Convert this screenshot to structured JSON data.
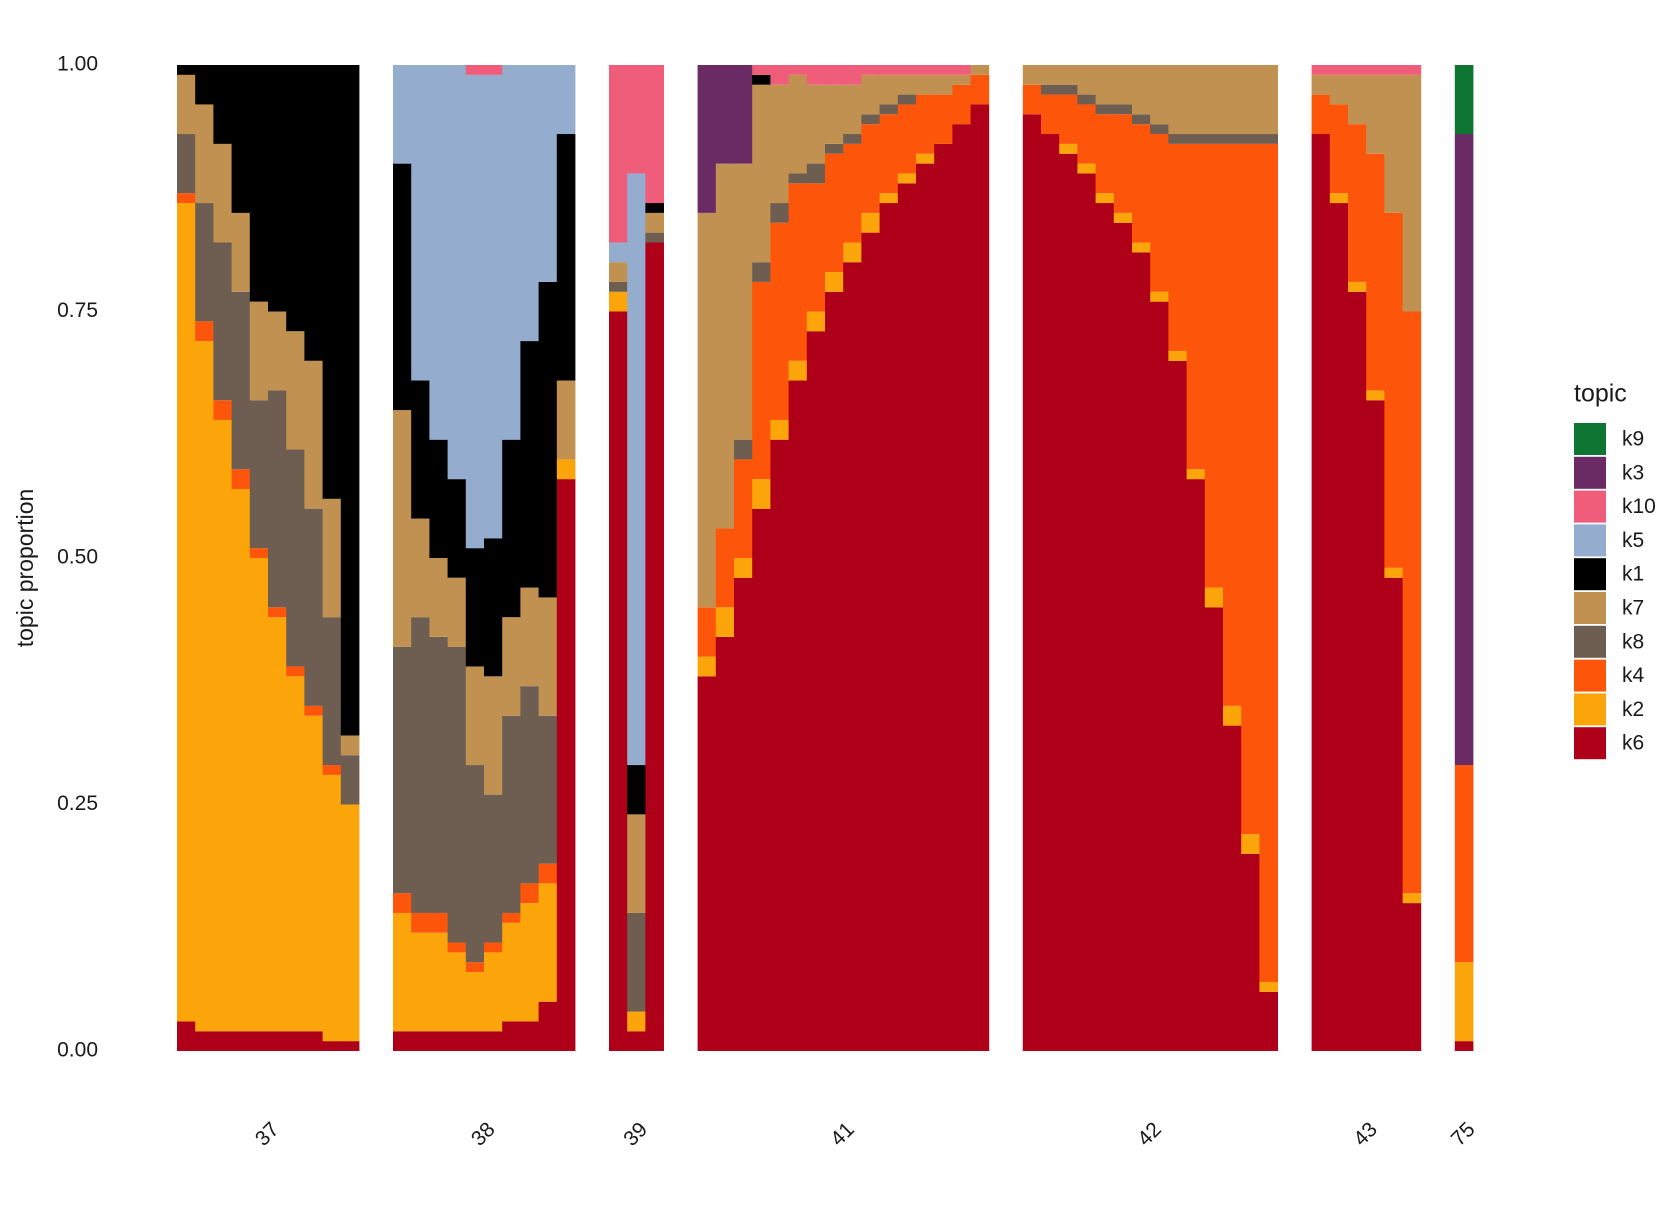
{
  "chart_data": {
    "type": "stacked-bar",
    "ylabel": "topic proportion",
    "legend_title": "topic",
    "legend_position": "right",
    "grid": false,
    "ylim": [
      0,
      1
    ],
    "yticks": [
      {
        "value": 0,
        "label": "0.00"
      },
      {
        "value": 0.25,
        "label": "0.25"
      },
      {
        "value": 0.5,
        "label": "0.50"
      },
      {
        "value": 0.75,
        "label": "0.75"
      },
      {
        "value": 1,
        "label": "1.00"
      }
    ],
    "categories": [
      "37",
      "37",
      "37",
      "37",
      "37",
      "37",
      "37",
      "37",
      "37",
      "37",
      "38",
      "38",
      "38",
      "38",
      "38",
      "38",
      "38",
      "38",
      "38",
      "38",
      "39",
      "39",
      "39",
      "41",
      "41",
      "41",
      "41",
      "41",
      "41",
      "41",
      "41",
      "41",
      "41",
      "41",
      "41",
      "41",
      "41",
      "41",
      "41",
      "42",
      "42",
      "42",
      "42",
      "42",
      "42",
      "42",
      "42",
      "42",
      "42",
      "42",
      "42",
      "42",
      "42",
      "43",
      "43",
      "43",
      "43",
      "43",
      "43",
      "75"
    ],
    "series": [
      {
        "name": "k9",
        "color": "#0f7533",
        "values": [
          0,
          0,
          0,
          0,
          0,
          0,
          0,
          0,
          0,
          0,
          0,
          0,
          0,
          0,
          0,
          0,
          0,
          0,
          0,
          0,
          0,
          0,
          0,
          0,
          0,
          0,
          0,
          0,
          0,
          0,
          0,
          0,
          0,
          0,
          0,
          0,
          0,
          0,
          0,
          0,
          0,
          0,
          0,
          0,
          0,
          0,
          0,
          0,
          0,
          0,
          0,
          0,
          0,
          0,
          0,
          0,
          0,
          0,
          0,
          0.07
        ]
      },
      {
        "name": "k3",
        "color": "#6a2a63",
        "values": [
          0,
          0,
          0,
          0,
          0,
          0,
          0,
          0,
          0,
          0,
          0,
          0,
          0,
          0,
          0,
          0,
          0,
          0,
          0,
          0,
          0,
          0,
          0,
          0.15,
          0.1,
          0.1,
          0,
          0,
          0,
          0,
          0,
          0,
          0,
          0,
          0,
          0,
          0,
          0,
          0,
          0,
          0,
          0,
          0,
          0,
          0,
          0,
          0,
          0,
          0,
          0,
          0,
          0,
          0,
          0,
          0,
          0,
          0,
          0,
          0,
          0.64
        ]
      },
      {
        "name": "k10",
        "color": "#ef5d7b",
        "values": [
          0,
          0,
          0,
          0,
          0,
          0,
          0,
          0,
          0,
          0,
          0,
          0,
          0,
          0,
          0.01,
          0.01,
          0,
          0,
          0,
          0,
          0.18,
          0.11,
          0.14,
          0,
          0,
          0,
          0.01,
          0.02,
          0.01,
          0.02,
          0.02,
          0.02,
          0.01,
          0.01,
          0.01,
          0.01,
          0.01,
          0.01,
          0,
          0,
          0,
          0,
          0,
          0,
          0,
          0,
          0,
          0,
          0,
          0,
          0,
          0,
          0,
          0.01,
          0.01,
          0.01,
          0.01,
          0.01,
          0.01,
          0
        ]
      },
      {
        "name": "k5",
        "color": "#94acce",
        "values": [
          0,
          0,
          0,
          0,
          0,
          0,
          0,
          0,
          0,
          0,
          0.1,
          0.32,
          0.38,
          0.42,
          0.48,
          0.47,
          0.38,
          0.28,
          0.22,
          0.07,
          0.02,
          0.6,
          0,
          0,
          0,
          0,
          0,
          0,
          0,
          0,
          0,
          0,
          0,
          0,
          0,
          0,
          0,
          0,
          0,
          0,
          0,
          0,
          0,
          0,
          0,
          0,
          0,
          0,
          0,
          0,
          0,
          0,
          0,
          0,
          0,
          0,
          0,
          0,
          0,
          0
        ]
      },
      {
        "name": "k1",
        "color": "#000000",
        "values": [
          0.01,
          0.04,
          0.08,
          0.15,
          0.24,
          0.25,
          0.27,
          0.3,
          0.44,
          0.68,
          0.25,
          0.14,
          0.12,
          0.1,
          0.12,
          0.14,
          0.18,
          0.25,
          0.32,
          0.25,
          0,
          0.05,
          0.01,
          0,
          0,
          0,
          0.01,
          0,
          0,
          0,
          0,
          0,
          0,
          0,
          0,
          0,
          0,
          0,
          0,
          0,
          0,
          0,
          0,
          0,
          0,
          0,
          0,
          0,
          0,
          0,
          0,
          0,
          0,
          0,
          0,
          0,
          0,
          0,
          0,
          0
        ]
      },
      {
        "name": "k7",
        "color": "#c09150",
        "values": [
          0.06,
          0.1,
          0.1,
          0.08,
          0.1,
          0.08,
          0.12,
          0.15,
          0.12,
          0.02,
          0.24,
          0.1,
          0.08,
          0.07,
          0.1,
          0.12,
          0.1,
          0.1,
          0.12,
          0.08,
          0.02,
          0.1,
          0.02,
          0.4,
          0.37,
          0.28,
          0.18,
          0.12,
          0.1,
          0.08,
          0.06,
          0.05,
          0.04,
          0.03,
          0.02,
          0.02,
          0.02,
          0.01,
          0.01,
          0.02,
          0.02,
          0.02,
          0.03,
          0.04,
          0.04,
          0.05,
          0.06,
          0.07,
          0.07,
          0.07,
          0.07,
          0.07,
          0.07,
          0.02,
          0.03,
          0.05,
          0.08,
          0.14,
          0.24,
          0
        ]
      },
      {
        "name": "k8",
        "color": "#6e5e52",
        "values": [
          0.06,
          0.12,
          0.16,
          0.18,
          0.15,
          0.22,
          0.22,
          0.2,
          0.15,
          0.05,
          0.25,
          0.3,
          0.28,
          0.3,
          0.2,
          0.15,
          0.2,
          0.2,
          0.15,
          0,
          0.01,
          0.1,
          0.01,
          0,
          0,
          0.02,
          0.02,
          0.02,
          0.01,
          0.02,
          0.01,
          0.01,
          0.01,
          0.01,
          0.01,
          0,
          0,
          0,
          0,
          0,
          0.01,
          0.01,
          0.01,
          0.01,
          0.01,
          0.01,
          0.01,
          0.01,
          0.01,
          0.01,
          0.01,
          0.01,
          0.01,
          0,
          0,
          0,
          0,
          0,
          0,
          0
        ]
      },
      {
        "name": "k4",
        "color": "#fd560a",
        "values": [
          0.01,
          0.02,
          0.02,
          0.02,
          0.01,
          0.01,
          0.01,
          0.01,
          0.01,
          0,
          0.02,
          0.02,
          0.02,
          0.01,
          0.01,
          0.01,
          0.01,
          0.02,
          0.02,
          0,
          0,
          0,
          0,
          0.05,
          0.08,
          0.1,
          0.2,
          0.2,
          0.18,
          0.13,
          0.12,
          0.1,
          0.09,
          0.08,
          0.07,
          0.06,
          0.05,
          0.04,
          0.03,
          0.03,
          0.04,
          0.05,
          0.06,
          0.08,
          0.1,
          0.12,
          0.16,
          0.21,
          0.33,
          0.45,
          0.57,
          0.7,
          0.85,
          0.04,
          0.09,
          0.16,
          0.24,
          0.36,
          0.59,
          0.2
        ]
      },
      {
        "name": "k2",
        "color": "#fca50a",
        "values": [
          0.83,
          0.7,
          0.62,
          0.55,
          0.48,
          0.42,
          0.36,
          0.32,
          0.27,
          0.24,
          0.12,
          0.1,
          0.1,
          0.08,
          0.06,
          0.08,
          0.1,
          0.12,
          0.12,
          0.02,
          0.02,
          0.02,
          0,
          0.02,
          0.03,
          0.02,
          0.03,
          0.02,
          0.02,
          0.02,
          0.02,
          0.02,
          0.02,
          0.01,
          0.01,
          0.01,
          0,
          0,
          0,
          0,
          0,
          0.01,
          0.01,
          0.01,
          0.01,
          0.01,
          0.01,
          0.01,
          0.01,
          0.02,
          0.02,
          0.02,
          0.01,
          0,
          0.01,
          0.01,
          0.01,
          0.01,
          0.01,
          0.08
        ]
      },
      {
        "name": "k6",
        "color": "#ae0018",
        "values": [
          0.03,
          0.02,
          0.02,
          0.02,
          0.02,
          0.02,
          0.02,
          0.02,
          0.01,
          0.01,
          0.02,
          0.02,
          0.02,
          0.02,
          0.02,
          0.02,
          0.03,
          0.03,
          0.05,
          0.58,
          0.75,
          0.02,
          0.82,
          0.38,
          0.42,
          0.48,
          0.55,
          0.62,
          0.68,
          0.73,
          0.77,
          0.8,
          0.83,
          0.86,
          0.88,
          0.9,
          0.92,
          0.94,
          0.96,
          0.95,
          0.93,
          0.91,
          0.89,
          0.86,
          0.84,
          0.81,
          0.76,
          0.7,
          0.58,
          0.45,
          0.33,
          0.2,
          0.06,
          0.93,
          0.86,
          0.77,
          0.66,
          0.48,
          0.15,
          0.01
        ]
      }
    ]
  }
}
